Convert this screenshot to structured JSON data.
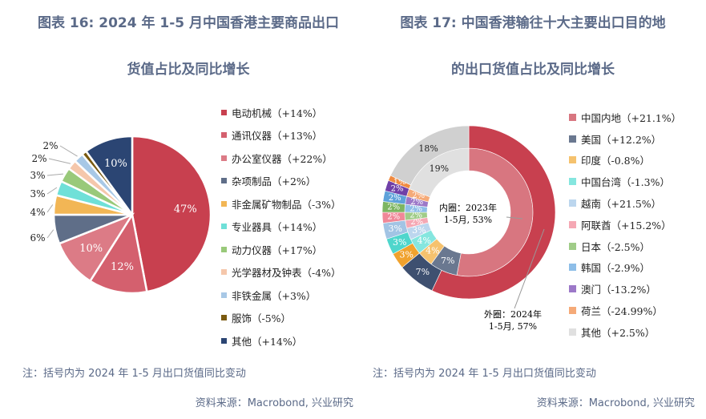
{
  "left": {
    "title_line1": "图表 16: 2024 年 1-5 月中国香港主要商品出口",
    "title_line2": "货值占比及同比增长",
    "note": "注：括号内为 2024 年 1-5 月出口货值同比变动",
    "source": "资料来源：Macrobond, 兴业研究"
  },
  "right": {
    "title_line1": "图表 17: 中国香港输往十大主要出口目的地",
    "title_line2": "的出口货值占比及同比增长",
    "note": "注：括号内为 2024 年 1-5 月出口货值同比变动",
    "source": "资料来源：Macrobond, 兴业研究",
    "inner_callout_1": "内圈：2023年",
    "inner_callout_2": "1-5月, 53%",
    "outer_callout_1": "外圈：2024年",
    "outer_callout_2": "1-5月, 57%"
  },
  "chart_data": [
    {
      "type": "pie",
      "title": "2024 年 1-5 月中国香港主要商品出口货值占比及同比增长",
      "categories": [
        "电动机械",
        "通讯仪器",
        "办公室仪器",
        "杂项制品",
        "非金属矿物制品",
        "专业器具",
        "动力仪器",
        "光学器材及钟表",
        "非铁金属",
        "服饰",
        "其他"
      ],
      "legend": [
        "电动机械（+14%）",
        "通讯仪器（+13%）",
        "办公室仪器（+22%）",
        "杂项制品（+2%）",
        "非金属矿物制品（-3%）",
        "专业器具（+14%）",
        "动力仪器（+17%）",
        "光学器材及钟表（-4%）",
        "非铁金属（+3%）",
        "服饰（-5%）",
        "其他（+14%）"
      ],
      "values": [
        47,
        12,
        10,
        6,
        4,
        3,
        3,
        2,
        2,
        1,
        10
      ],
      "labels": [
        "47%",
        "12%",
        "10%",
        "6%",
        "4%",
        "3%",
        "3%",
        "2%",
        "2%",
        "",
        "10%"
      ],
      "colors": [
        "#c8404f",
        "#d4606e",
        "#dc7b86",
        "#5f6e88",
        "#f2b655",
        "#6fe0d8",
        "#99c97a",
        "#f5c7ab",
        "#a8c8e6",
        "#7a5a10",
        "#2b4573"
      ],
      "legend_placement": "right"
    },
    {
      "type": "pie",
      "subtype": "donut",
      "title": "中国香港输往十大主要出口目的地的出口货值占比及同比增长",
      "categories": [
        "中国内地",
        "美国",
        "印度",
        "中国台湾",
        "越南",
        "阿联酋",
        "日本",
        "韩国",
        "澳门",
        "荷兰",
        "其他"
      ],
      "legend": [
        "中国内地（+21.1%）",
        "美国（+12.2%）",
        "印度（-0.8%）",
        "中国台湾（-1.3%）",
        "越南（+21.5%）",
        "阿联酋（+15.2%）",
        "日本（-2.5%）",
        "韩国（-2.9%）",
        "澳门（-13.2%）",
        "荷兰（-24.99%）",
        "其他（+2.5%）"
      ],
      "series": [
        {
          "name": "2024年1-5月 (外圈)",
          "values": [
            57,
            7,
            3,
            3,
            3,
            2,
            2,
            2,
            2,
            1,
            18
          ]
        },
        {
          "name": "2023年1-5月 (内圈)",
          "values": [
            53,
            7,
            4,
            4,
            3,
            2,
            2,
            2,
            2,
            2,
            19
          ]
        }
      ],
      "colors_outer": [
        "#c8404f",
        "#3e5070",
        "#f0a22e",
        "#4fd6cc",
        "#a2c4e4",
        "#f08898",
        "#7db562",
        "#5ea2da",
        "#7040a8",
        "#f08a40",
        "#d0d0d0"
      ],
      "colors_inner": [
        "#d87680",
        "#6a7890",
        "#f5c26e",
        "#85e6df",
        "#bcd6ee",
        "#f5a8b4",
        "#a0cc88",
        "#8ebee8",
        "#9c78c8",
        "#f5aa78",
        "#e0e0e0"
      ],
      "legend_colors": [
        "#d87680",
        "#6a7890",
        "#f5c26e",
        "#85e6df",
        "#bcd6ee",
        "#f5a8b4",
        "#a0cc88",
        "#8ebee8",
        "#9c78c8",
        "#f5aa78",
        "#e0e0e0"
      ],
      "legend_placement": "right"
    }
  ]
}
